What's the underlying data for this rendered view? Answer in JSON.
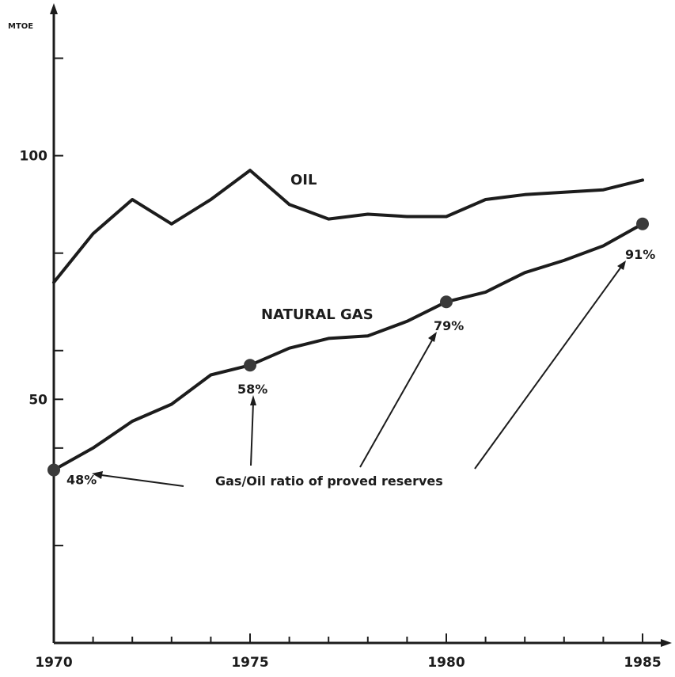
{
  "chart_data": {
    "type": "line",
    "ylabel": "MTOE",
    "xlim": [
      1970,
      1985
    ],
    "ylim": [
      0,
      130
    ],
    "x_ticks": [
      1970,
      1975,
      1980,
      1985
    ],
    "x_tick_labels": [
      "1970",
      "1975",
      "1980",
      "1985"
    ],
    "y_tick_labels": [
      {
        "value": 50,
        "label": "50"
      },
      {
        "value": 100,
        "label": "100"
      }
    ],
    "y_minor_ticks": [
      20,
      40,
      60,
      80,
      120
    ],
    "series": [
      {
        "name": "OIL",
        "x": [
          1970,
          1971,
          1972,
          1973,
          1974,
          1975,
          1976,
          1977,
          1978,
          1979,
          1980,
          1981,
          1982,
          1983,
          1984,
          1985
        ],
        "y": [
          74,
          84,
          91,
          86,
          91,
          97,
          90,
          87,
          88,
          87.5,
          87.5,
          91,
          92,
          92.5,
          93,
          95
        ]
      },
      {
        "name": "NATURAL GAS",
        "x": [
          1970,
          1971,
          1972,
          1973,
          1974,
          1975,
          1976,
          1977,
          1978,
          1979,
          1980,
          1981,
          1982,
          1983,
          1984,
          1985
        ],
        "y": [
          35.5,
          40,
          45.5,
          49,
          55,
          57,
          60.5,
          62.5,
          63,
          66,
          70,
          72,
          76,
          78.5,
          81.5,
          86
        ]
      }
    ],
    "markers": [
      {
        "x": 1970,
        "y": 35.5,
        "label": "48%"
      },
      {
        "x": 1975,
        "y": 57,
        "label": "58%"
      },
      {
        "x": 1980,
        "y": 70,
        "label": "79%"
      },
      {
        "x": 1985,
        "y": 86,
        "label": "91%"
      }
    ],
    "annotation": "Gas/Oil ratio of proved reserves"
  }
}
